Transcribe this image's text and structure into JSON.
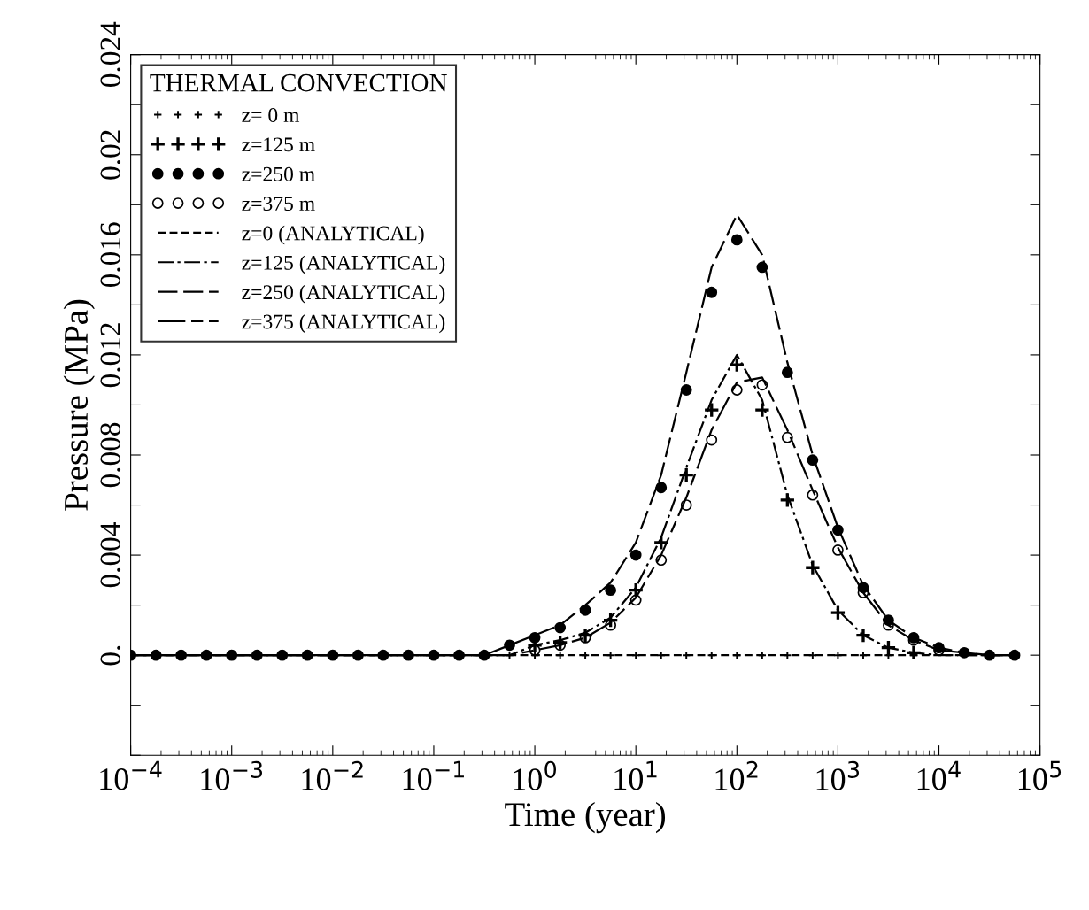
{
  "chart_data": {
    "type": "scatter",
    "xlabel": "Time (year)",
    "ylabel": "Pressure (MPa)",
    "legend_title": "THERMAL CONVECTION",
    "legend": "top left",
    "log": "x",
    "grid": false,
    "x": [
      0.0001,
      0.000178,
      0.000316,
      0.000562,
      0.001,
      0.00178,
      0.00316,
      0.00562,
      0.01,
      0.0178,
      0.0316,
      0.0562,
      0.1,
      0.178,
      0.316,
      0.562,
      1,
      1.78,
      3.16,
      5.62,
      10,
      17.8,
      31.6,
      56.2,
      100,
      178,
      316,
      562,
      1000,
      1780,
      3160,
      5620,
      10000,
      17800,
      31600,
      56200
    ],
    "xlim": [
      0.0001,
      100000
    ],
    "xticks": [
      {
        "value": 0.0001,
        "label": "10$^{−4}$"
      },
      {
        "value": 0.001,
        "label": "10$^{−3}$"
      },
      {
        "value": 0.01,
        "label": "10$^{−2}$"
      },
      {
        "value": 0.1,
        "label": "10$^{−1}$"
      },
      {
        "value": 1,
        "label": "10$^{0}$"
      },
      {
        "value": 10,
        "label": "10$^{1}$"
      },
      {
        "value": 100,
        "label": "10$^{2}$"
      },
      {
        "value": 1000,
        "label": "10$^{3}$"
      },
      {
        "value": 10000,
        "label": "10$^{4}$"
      },
      {
        "value": 100000,
        "label": "10$^{5}$"
      }
    ],
    "ylim": [
      -0.004,
      0.024
    ],
    "yticks": [
      {
        "value": -0.004,
        "label": null
      },
      {
        "value": -0.002,
        "label": null
      },
      {
        "value": 0,
        "label": "0."
      },
      {
        "value": 0.002,
        "label": null
      },
      0.004,
      {
        "value": 0.006,
        "label": null
      },
      0.008,
      {
        "value": 0.01,
        "label": null
      },
      0.012,
      {
        "value": 0.014,
        "label": null
      },
      0.016,
      {
        "value": 0.018,
        "label": null
      },
      0.02,
      {
        "value": 0.022,
        "label": null
      },
      0.024
    ],
    "series": [
      {
        "name": "z= 0 m",
        "marker": "cross",
        "color": "#000000",
        "values": [
          null,
          null,
          null,
          null,
          null,
          null,
          null,
          null,
          null,
          null,
          null,
          null,
          null,
          null,
          null,
          0,
          0,
          0,
          0,
          0,
          0,
          0,
          0,
          0,
          0,
          0,
          0,
          0,
          0,
          0,
          0,
          0,
          null,
          null,
          null,
          null
        ]
      },
      {
        "name": "z=125 m",
        "marker": "cross",
        "color": "#000000",
        "values": [
          null,
          null,
          null,
          null,
          null,
          null,
          null,
          null,
          null,
          null,
          null,
          null,
          null,
          null,
          null,
          null,
          0.0004,
          0.0005,
          0.0008,
          0.0014,
          0.0026,
          0.0045,
          0.0072,
          0.0098,
          0.0116,
          0.0098,
          0.0062,
          0.0035,
          0.0017,
          0.0008,
          0.0003,
          0.0001,
          null,
          null,
          null,
          null
        ]
      },
      {
        "name": "z=250 m",
        "marker": "circle",
        "color": "#000000",
        "values": [
          0,
          0,
          0,
          0,
          0,
          0,
          0,
          0,
          0,
          0,
          0,
          0,
          0,
          0,
          0,
          0.0004,
          0.0007,
          0.0011,
          0.0018,
          0.0026,
          0.004,
          0.0067,
          0.0106,
          0.0145,
          0.0166,
          0.0155,
          0.0113,
          0.0078,
          0.005,
          0.0027,
          0.0014,
          0.0007,
          0.0003,
          0.0001,
          0,
          0
        ]
      },
      {
        "name": "z=375 m",
        "marker": "circle",
        "color": "#000000",
        "values": [
          null,
          null,
          null,
          null,
          null,
          null,
          null,
          null,
          null,
          null,
          null,
          null,
          null,
          null,
          null,
          null,
          0.0002,
          0.0004,
          0.0007,
          0.0012,
          0.0022,
          0.0038,
          0.006,
          0.0086,
          0.0106,
          0.0108,
          0.0087,
          0.0064,
          0.0042,
          0.0025,
          0.0012,
          0.0006,
          0.0002,
          null,
          null,
          null
        ]
      },
      {
        "name": "z=0 (ANALYTICAL)",
        "type": "line",
        "line_style": "dashed",
        "color": "#000000",
        "values": [
          0,
          0,
          0,
          0,
          0,
          0,
          0,
          0,
          0,
          0,
          0,
          0,
          0,
          0,
          0,
          0,
          0,
          0,
          0,
          0,
          0,
          0,
          0,
          0,
          0,
          0,
          0,
          0,
          0,
          0,
          0,
          0,
          0,
          0,
          0,
          0
        ]
      },
      {
        "name": "z=125 (ANALYTICAL)",
        "type": "line",
        "line_style": "dashdot",
        "color": "#000000",
        "values": [
          0,
          0,
          0,
          0,
          0,
          0,
          0,
          0,
          0,
          0,
          0,
          0,
          0,
          0,
          0,
          0,
          0.0004,
          0.0006,
          0.0009,
          0.0015,
          0.0027,
          0.0047,
          0.0075,
          0.0102,
          0.012,
          0.0102,
          0.0064,
          0.0036,
          0.0018,
          0.0008,
          0.0003,
          0.0001,
          0,
          0,
          0,
          0
        ]
      },
      {
        "name": "z=250 (ANALYTICAL)",
        "type": "line",
        "line_style": "longdash",
        "color": "#000000",
        "values": [
          0,
          0,
          0,
          0,
          0,
          0,
          0,
          0,
          0,
          0,
          0,
          0,
          0,
          0,
          0,
          0.0004,
          0.0008,
          0.0012,
          0.002,
          0.0029,
          0.0045,
          0.0072,
          0.0113,
          0.0155,
          0.0176,
          0.016,
          0.0117,
          0.008,
          0.0051,
          0.0028,
          0.0014,
          0.0007,
          0.0003,
          0.0001,
          0,
          0
        ]
      },
      {
        "name": "z=375 (ANALYTICAL)",
        "type": "line",
        "line_style": "longdash2",
        "color": "#000000",
        "values": [
          0,
          0,
          0,
          0,
          0,
          0,
          0,
          0,
          0,
          0,
          0,
          0,
          0,
          0,
          0,
          0,
          0.0002,
          0.0004,
          0.0007,
          0.0013,
          0.0023,
          0.004,
          0.0063,
          0.009,
          0.0109,
          0.0111,
          0.009,
          0.0066,
          0.0043,
          0.0025,
          0.0012,
          0.0006,
          0.0002,
          0.0001,
          0,
          0
        ]
      }
    ]
  }
}
